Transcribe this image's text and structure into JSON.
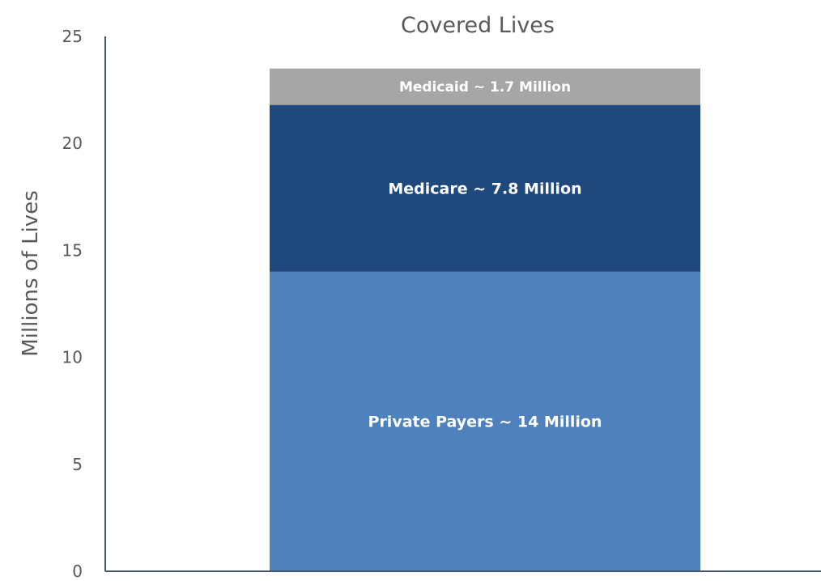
{
  "chart_data": {
    "type": "bar",
    "stacked": true,
    "title": "Covered Lives",
    "xlabel": "",
    "ylabel": "Millions of Lives",
    "ylim": [
      0,
      25
    ],
    "yticks": [
      "0",
      "5",
      "10",
      "15",
      "20",
      "25"
    ],
    "grid": false,
    "series": [
      {
        "label": "Private Payers ~ 14 Million",
        "value": 14,
        "color": "#4f81bd"
      },
      {
        "label": "Medicare ~ 7.8 Million",
        "value": 7.8,
        "color": "#1f497d"
      },
      {
        "label": "Medicaid ~ 1.7 Million",
        "value": 1.7,
        "color": "#a6a6a6"
      }
    ],
    "axis_color": "#44546a"
  }
}
